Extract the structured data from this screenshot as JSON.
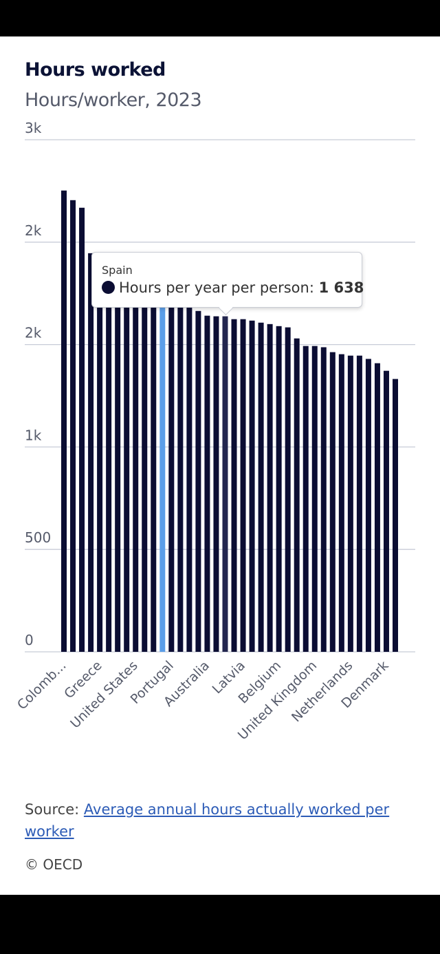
{
  "header": {
    "title": "Hours worked",
    "subtitle": "Hours/worker, 2023"
  },
  "chart_data": {
    "type": "bar",
    "title": "Hours worked",
    "subtitle": "Hours/worker, 2023",
    "xlabel": "",
    "ylabel": "",
    "ylim": [
      0,
      2500
    ],
    "y_ticks": [
      0,
      500,
      1000,
      1500,
      2000,
      2500
    ],
    "y_tick_labels": [
      "0",
      "500",
      "1k",
      "2k",
      "2k",
      "3k"
    ],
    "grid": true,
    "categories": [
      "Colomb...",
      "",
      "",
      "",
      "Greece",
      "",
      "",
      "",
      "United States",
      "",
      "",
      "",
      "Portugal",
      "",
      "",
      "",
      "Australia",
      "",
      "Spain",
      "",
      "Latvia",
      "",
      "",
      "",
      "Belgium",
      "",
      "",
      "",
      "United Kingdom",
      "",
      "",
      "",
      "Netherlands",
      "",
      "",
      "",
      "Denmark",
      ""
    ],
    "tick_indices": [
      0,
      4,
      8,
      12,
      16,
      20,
      24,
      28,
      32,
      36
    ],
    "values": [
      2252,
      2205,
      2168,
      1946,
      1897,
      1880,
      1872,
      1803,
      1799,
      1766,
      1750,
      1742,
      1710,
      1690,
      1680,
      1664,
      1641,
      1638,
      1638,
      1624,
      1624,
      1617,
      1607,
      1600,
      1590,
      1584,
      1530,
      1493,
      1493,
      1487,
      1463,
      1453,
      1446,
      1446,
      1430,
      1409,
      1372,
      1332
    ],
    "highlight_index": 11,
    "hover_index": 18,
    "colors": {
      "bar": "#0b0d33",
      "highlight": "#5b9ee8",
      "hover": "#23264f",
      "grid": "#c8ccd8"
    }
  },
  "tooltip": {
    "country": "Spain",
    "label": "Hours per year per person: ",
    "value": "1 638"
  },
  "footer": {
    "source_prefix": "Source: ",
    "source_link": "Average annual hours actually worked per worker",
    "copyright": "© OECD"
  }
}
